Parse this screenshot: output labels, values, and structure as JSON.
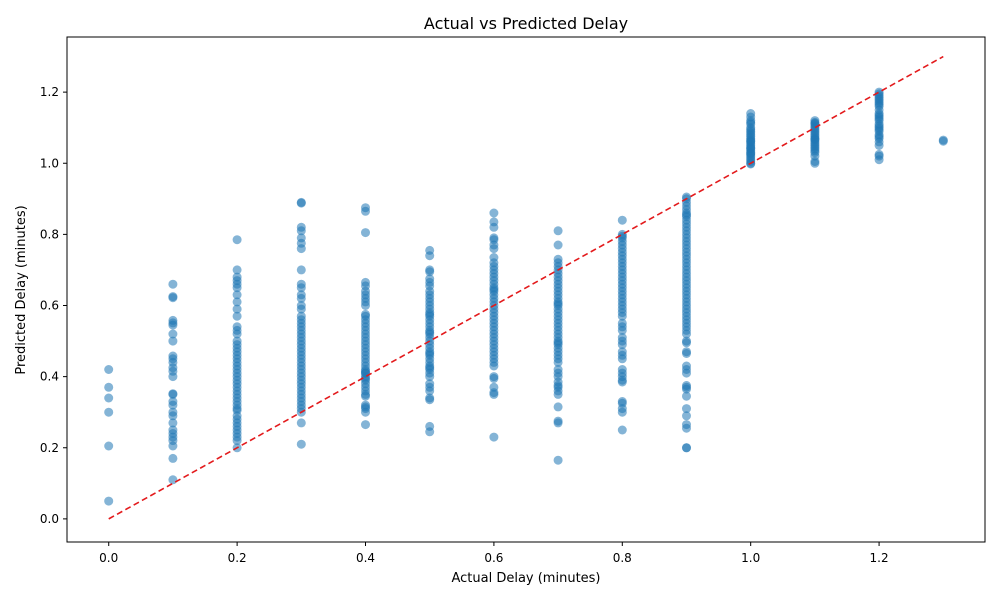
{
  "chart_data": {
    "type": "scatter",
    "title": "Actual vs Predicted Delay",
    "xlabel": "Actual Delay (minutes)",
    "ylabel": "Predicted Delay (minutes)",
    "xlim": [
      -0.065,
      1.365
    ],
    "ylim": [
      -0.065,
      1.355
    ],
    "xticks": [
      "0.0",
      "0.2",
      "0.4",
      "0.6",
      "0.8",
      "1.0",
      "1.2"
    ],
    "yticks": [
      "0.0",
      "0.2",
      "0.4",
      "0.6",
      "0.8",
      "1.0",
      "1.2"
    ],
    "grid": false,
    "legend": "none",
    "marker_color": "#1f77b4",
    "marker_alpha": 0.55,
    "reference_line": {
      "x": [
        0.0,
        1.3
      ],
      "y": [
        0.0,
        1.3
      ],
      "color": "#e31a1c",
      "style": "dashed"
    },
    "points": {
      "x": [
        0.0,
        0.0,
        0.0,
        0.0,
        0.0,
        0.0,
        0.1,
        0.1,
        0.1,
        0.1,
        0.1,
        0.1,
        0.1,
        0.1,
        0.1,
        0.1,
        0.1,
        0.1,
        0.1,
        0.1,
        0.1,
        0.1,
        0.1,
        0.1,
        0.1,
        0.1,
        0.1,
        0.1,
        0.1,
        0.1,
        0.1,
        0.1,
        0.1,
        0.1,
        0.2,
        0.2,
        0.2,
        0.2,
        0.2,
        0.2,
        0.2,
        0.2,
        0.2,
        0.2,
        0.2,
        0.2,
        0.2,
        0.2,
        0.2,
        0.2,
        0.2,
        0.2,
        0.2,
        0.2,
        0.2,
        0.2,
        0.2,
        0.2,
        0.2,
        0.2,
        0.2,
        0.2,
        0.2,
        0.2,
        0.2,
        0.2,
        0.2,
        0.2,
        0.2,
        0.2,
        0.2,
        0.2,
        0.2,
        0.2,
        0.2,
        0.2,
        0.2,
        0.3,
        0.3,
        0.3,
        0.3,
        0.3,
        0.3,
        0.3,
        0.3,
        0.3,
        0.3,
        0.3,
        0.3,
        0.3,
        0.3,
        0.3,
        0.3,
        0.3,
        0.3,
        0.3,
        0.3,
        0.3,
        0.3,
        0.3,
        0.3,
        0.3,
        0.3,
        0.3,
        0.3,
        0.3,
        0.3,
        0.3,
        0.3,
        0.3,
        0.3,
        0.3,
        0.3,
        0.3,
        0.3,
        0.3,
        0.3,
        0.3,
        0.3,
        0.3,
        0.3,
        0.4,
        0.4,
        0.4,
        0.4,
        0.4,
        0.4,
        0.4,
        0.4,
        0.4,
        0.4,
        0.4,
        0.4,
        0.4,
        0.4,
        0.4,
        0.4,
        0.4,
        0.4,
        0.4,
        0.4,
        0.4,
        0.4,
        0.4,
        0.4,
        0.4,
        0.4,
        0.4,
        0.4,
        0.4,
        0.4,
        0.4,
        0.4,
        0.4,
        0.4,
        0.4,
        0.4,
        0.4,
        0.4,
        0.4,
        0.4,
        0.4,
        0.4,
        0.4,
        0.5,
        0.5,
        0.5,
        0.5,
        0.5,
        0.5,
        0.5,
        0.5,
        0.5,
        0.5,
        0.5,
        0.5,
        0.5,
        0.5,
        0.5,
        0.5,
        0.5,
        0.5,
        0.5,
        0.5,
        0.5,
        0.5,
        0.5,
        0.5,
        0.5,
        0.5,
        0.5,
        0.5,
        0.5,
        0.5,
        0.5,
        0.5,
        0.5,
        0.5,
        0.5,
        0.5,
        0.5,
        0.5,
        0.5,
        0.5,
        0.5,
        0.5,
        0.5,
        0.6,
        0.6,
        0.6,
        0.6,
        0.6,
        0.6,
        0.6,
        0.6,
        0.6,
        0.6,
        0.6,
        0.6,
        0.6,
        0.6,
        0.6,
        0.6,
        0.6,
        0.6,
        0.6,
        0.6,
        0.6,
        0.6,
        0.6,
        0.6,
        0.6,
        0.6,
        0.6,
        0.6,
        0.6,
        0.6,
        0.6,
        0.6,
        0.6,
        0.6,
        0.6,
        0.6,
        0.6,
        0.6,
        0.6,
        0.6,
        0.6,
        0.6,
        0.6,
        0.6,
        0.6,
        0.7,
        0.7,
        0.7,
        0.7,
        0.7,
        0.7,
        0.7,
        0.7,
        0.7,
        0.7,
        0.7,
        0.7,
        0.7,
        0.7,
        0.7,
        0.7,
        0.7,
        0.7,
        0.7,
        0.7,
        0.7,
        0.7,
        0.7,
        0.7,
        0.7,
        0.7,
        0.7,
        0.7,
        0.7,
        0.7,
        0.7,
        0.7,
        0.7,
        0.7,
        0.7,
        0.7,
        0.7,
        0.7,
        0.7,
        0.7,
        0.7,
        0.7,
        0.7,
        0.7,
        0.7,
        0.7,
        0.8,
        0.8,
        0.8,
        0.8,
        0.8,
        0.8,
        0.8,
        0.8,
        0.8,
        0.8,
        0.8,
        0.8,
        0.8,
        0.8,
        0.8,
        0.8,
        0.8,
        0.8,
        0.8,
        0.8,
        0.8,
        0.8,
        0.8,
        0.8,
        0.8,
        0.8,
        0.8,
        0.8,
        0.8,
        0.8,
        0.8,
        0.8,
        0.8,
        0.8,
        0.8,
        0.8,
        0.8,
        0.8,
        0.8,
        0.8,
        0.8,
        0.8,
        0.8,
        0.8,
        0.8,
        0.9,
        0.9,
        0.9,
        0.9,
        0.9,
        0.9,
        0.9,
        0.9,
        0.9,
        0.9,
        0.9,
        0.9,
        0.9,
        0.9,
        0.9,
        0.9,
        0.9,
        0.9,
        0.9,
        0.9,
        0.9,
        0.9,
        0.9,
        0.9,
        0.9,
        0.9,
        0.9,
        0.9,
        0.9,
        0.9,
        0.9,
        0.9,
        0.9,
        0.9,
        0.9,
        0.9,
        0.9,
        0.9,
        0.9,
        0.9,
        0.9,
        0.9,
        0.9,
        0.9,
        0.9,
        0.9,
        0.9,
        0.9,
        0.9,
        0.9,
        0.9,
        0.9,
        0.9,
        0.9,
        0.9,
        0.9,
        0.9,
        0.9,
        1.0,
        1.0,
        1.0,
        1.0,
        1.0,
        1.0,
        1.0,
        1.0,
        1.0,
        1.0,
        1.0,
        1.0,
        1.0,
        1.0,
        1.0,
        1.0,
        1.0,
        1.0,
        1.0,
        1.0,
        1.0,
        1.0,
        1.0,
        1.0,
        1.0,
        1.0,
        1.0,
        1.0,
        1.0,
        1.0,
        1.1,
        1.1,
        1.1,
        1.1,
        1.1,
        1.1,
        1.1,
        1.1,
        1.1,
        1.1,
        1.1,
        1.1,
        1.1,
        1.1,
        1.1,
        1.1,
        1.1,
        1.1,
        1.1,
        1.1,
        1.1,
        1.1,
        1.1,
        1.1,
        1.2,
        1.2,
        1.2,
        1.2,
        1.2,
        1.2,
        1.2,
        1.2,
        1.2,
        1.2,
        1.2,
        1.2,
        1.2,
        1.2,
        1.2,
        1.2,
        1.2,
        1.2,
        1.2,
        1.2,
        1.2,
        1.2,
        1.2,
        1.2,
        1.2,
        1.2,
        1.2,
        1.2,
        1.3,
        1.3
      ],
      "y": [
        0.42,
        0.37,
        0.34,
        0.3,
        0.205,
        0.05,
        0.66,
        0.625,
        0.622,
        0.558,
        0.551,
        0.545,
        0.52,
        0.5,
        0.458,
        0.45,
        0.44,
        0.425,
        0.415,
        0.4,
        0.352,
        0.35,
        0.33,
        0.32,
        0.3,
        0.29,
        0.27,
        0.25,
        0.24,
        0.23,
        0.22,
        0.205,
        0.17,
        0.11,
        0.785,
        0.7,
        0.68,
        0.67,
        0.66,
        0.65,
        0.63,
        0.61,
        0.59,
        0.57,
        0.54,
        0.53,
        0.52,
        0.5,
        0.49,
        0.48,
        0.47,
        0.46,
        0.45,
        0.44,
        0.43,
        0.42,
        0.41,
        0.4,
        0.39,
        0.38,
        0.37,
        0.36,
        0.35,
        0.34,
        0.33,
        0.32,
        0.31,
        0.305,
        0.29,
        0.28,
        0.27,
        0.26,
        0.25,
        0.24,
        0.23,
        0.22,
        0.2,
        0.89,
        0.888,
        0.82,
        0.81,
        0.79,
        0.775,
        0.76,
        0.7,
        0.66,
        0.65,
        0.63,
        0.62,
        0.6,
        0.59,
        0.57,
        0.56,
        0.55,
        0.54,
        0.53,
        0.52,
        0.51,
        0.5,
        0.49,
        0.48,
        0.47,
        0.46,
        0.45,
        0.44,
        0.43,
        0.42,
        0.41,
        0.4,
        0.39,
        0.38,
        0.37,
        0.36,
        0.35,
        0.34,
        0.33,
        0.32,
        0.31,
        0.3,
        0.27,
        0.21,
        0.875,
        0.865,
        0.805,
        0.665,
        0.655,
        0.64,
        0.63,
        0.62,
        0.61,
        0.6,
        0.575,
        0.57,
        0.56,
        0.55,
        0.54,
        0.53,
        0.52,
        0.51,
        0.5,
        0.49,
        0.48,
        0.47,
        0.46,
        0.45,
        0.44,
        0.43,
        0.42,
        0.415,
        0.41,
        0.4,
        0.39,
        0.38,
        0.37,
        0.36,
        0.35,
        0.345,
        0.32,
        0.315,
        0.31,
        0.3,
        0.265,
        0.41,
        0.395,
        0.755,
        0.74,
        0.7,
        0.695,
        0.675,
        0.665,
        0.655,
        0.64,
        0.63,
        0.62,
        0.61,
        0.6,
        0.59,
        0.58,
        0.57,
        0.56,
        0.55,
        0.54,
        0.53,
        0.52,
        0.51,
        0.5,
        0.49,
        0.48,
        0.47,
        0.46,
        0.45,
        0.44,
        0.43,
        0.42,
        0.41,
        0.4,
        0.38,
        0.37,
        0.36,
        0.34,
        0.335,
        0.26,
        0.245,
        0.575,
        0.525,
        0.465,
        0.425,
        0.86,
        0.835,
        0.82,
        0.79,
        0.785,
        0.77,
        0.76,
        0.735,
        0.72,
        0.71,
        0.7,
        0.69,
        0.68,
        0.67,
        0.66,
        0.65,
        0.645,
        0.64,
        0.63,
        0.62,
        0.61,
        0.6,
        0.59,
        0.58,
        0.57,
        0.56,
        0.55,
        0.54,
        0.53,
        0.52,
        0.51,
        0.5,
        0.49,
        0.48,
        0.47,
        0.46,
        0.45,
        0.44,
        0.43,
        0.4,
        0.395,
        0.37,
        0.355,
        0.35,
        0.23,
        0.81,
        0.77,
        0.73,
        0.72,
        0.71,
        0.7,
        0.69,
        0.68,
        0.67,
        0.66,
        0.65,
        0.64,
        0.63,
        0.62,
        0.61,
        0.6,
        0.59,
        0.58,
        0.57,
        0.56,
        0.55,
        0.54,
        0.53,
        0.52,
        0.51,
        0.5,
        0.49,
        0.48,
        0.47,
        0.46,
        0.45,
        0.44,
        0.42,
        0.41,
        0.4,
        0.385,
        0.375,
        0.37,
        0.36,
        0.35,
        0.315,
        0.275,
        0.27,
        0.165,
        0.605,
        0.495,
        0.84,
        0.8,
        0.795,
        0.79,
        0.78,
        0.77,
        0.76,
        0.75,
        0.74,
        0.73,
        0.72,
        0.71,
        0.7,
        0.69,
        0.68,
        0.67,
        0.66,
        0.65,
        0.64,
        0.63,
        0.62,
        0.61,
        0.6,
        0.59,
        0.58,
        0.57,
        0.55,
        0.54,
        0.53,
        0.51,
        0.5,
        0.49,
        0.47,
        0.46,
        0.45,
        0.42,
        0.41,
        0.4,
        0.39,
        0.385,
        0.33,
        0.325,
        0.31,
        0.3,
        0.25,
        0.905,
        0.9,
        0.89,
        0.88,
        0.87,
        0.86,
        0.85,
        0.84,
        0.83,
        0.82,
        0.81,
        0.8,
        0.79,
        0.78,
        0.77,
        0.76,
        0.75,
        0.74,
        0.73,
        0.72,
        0.71,
        0.7,
        0.69,
        0.68,
        0.67,
        0.66,
        0.65,
        0.64,
        0.63,
        0.62,
        0.61,
        0.6,
        0.59,
        0.58,
        0.57,
        0.56,
        0.55,
        0.54,
        0.53,
        0.52,
        0.5,
        0.495,
        0.47,
        0.465,
        0.43,
        0.42,
        0.41,
        0.375,
        0.37,
        0.365,
        0.345,
        0.31,
        0.29,
        0.265,
        0.255,
        0.2,
        0.2,
        0.855,
        1.14,
        1.13,
        1.12,
        1.115,
        1.11,
        1.1,
        1.09,
        1.085,
        1.08,
        1.075,
        1.07,
        1.065,
        1.06,
        1.055,
        1.05,
        1.045,
        1.04,
        1.035,
        1.03,
        1.025,
        1.02,
        1.015,
        1.01,
        1.005,
        1.0,
        0.998,
        1.095,
        1.062,
        1.042,
        1.028,
        1.12,
        1.115,
        1.11,
        1.105,
        1.1,
        1.095,
        1.09,
        1.085,
        1.08,
        1.075,
        1.07,
        1.065,
        1.06,
        1.055,
        1.05,
        1.045,
        1.04,
        1.035,
        1.03,
        1.02,
        1.005,
        1.0,
        1.068,
        1.112,
        1.2,
        1.195,
        1.19,
        1.185,
        1.18,
        1.175,
        1.17,
        1.16,
        1.15,
        1.14,
        1.135,
        1.13,
        1.12,
        1.11,
        1.1,
        1.095,
        1.09,
        1.08,
        1.07,
        1.06,
        1.05,
        1.025,
        1.02,
        1.01,
        1.165,
        1.125,
        1.105,
        1.075,
        1.065,
        1.062
      ]
    }
  }
}
